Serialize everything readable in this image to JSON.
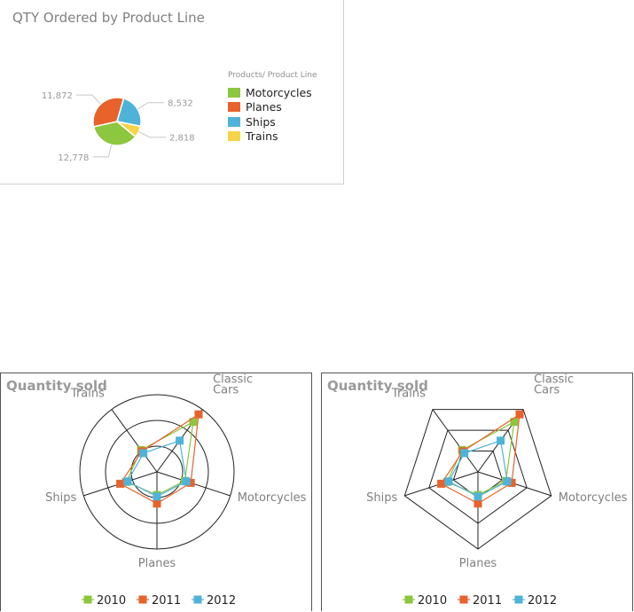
{
  "pie_title": "QTY Ordered by Product Line",
  "radar_title_1": "Quantity sold",
  "radar_title_2": "Quantity sold",
  "chart_data": [
    {
      "type": "pie",
      "title": "QTY Ordered by Product Line",
      "legend_title": "Products/ Product Line",
      "legend_position": "right",
      "categories": [
        "Motorcycles",
        "Planes",
        "Ships",
        "Trains"
      ],
      "values": [
        12778,
        11872,
        8532,
        2818
      ],
      "labels": [
        "12,778",
        "11,872",
        "8,532",
        "2,818"
      ],
      "colors": [
        "#8dc63f",
        "#e8622c",
        "#4fb3d9",
        "#f5d547"
      ]
    },
    {
      "type": "radar",
      "grid": "circle",
      "title": "Quantity sold",
      "legend_position": "bottom",
      "categories": [
        "Classic Cars",
        "Motorcycles",
        "Planes",
        "Ships",
        "Trains"
      ],
      "series": [
        {
          "name": "2010",
          "color": "#8dc63f",
          "values": [
            80,
            38,
            30,
            42,
            35
          ]
        },
        {
          "name": "2011",
          "color": "#e8622c",
          "values": [
            92,
            46,
            41,
            50,
            33
          ]
        },
        {
          "name": "2012",
          "color": "#4fb3d9",
          "values": [
            50,
            40,
            32,
            40,
            30
          ]
        }
      ]
    },
    {
      "type": "radar",
      "grid": "polygon",
      "title": "Quantity sold",
      "legend_position": "bottom",
      "categories": [
        "Classic Cars",
        "Motorcycles",
        "Planes",
        "Ships",
        "Trains"
      ],
      "series": [
        {
          "name": "2010",
          "color": "#8dc63f",
          "values": [
            80,
            38,
            30,
            42,
            35
          ]
        },
        {
          "name": "2011",
          "color": "#e8622c",
          "values": [
            92,
            46,
            41,
            50,
            33
          ]
        },
        {
          "name": "2012",
          "color": "#4fb3d9",
          "values": [
            50,
            40,
            32,
            40,
            30
          ]
        }
      ]
    }
  ]
}
